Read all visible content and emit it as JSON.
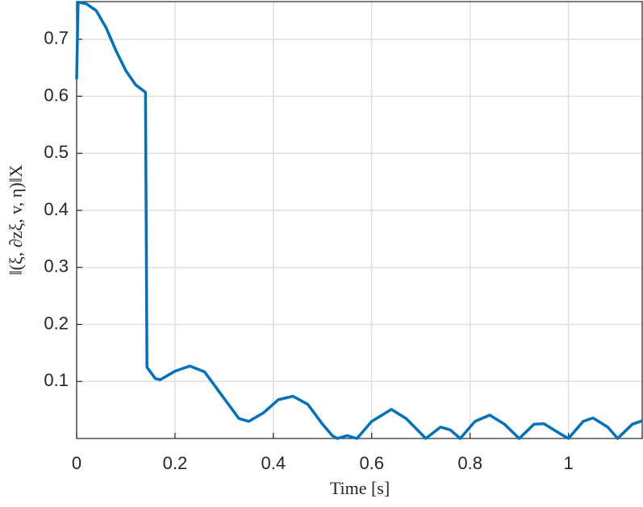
{
  "chart_data": {
    "type": "line",
    "xlabel": "Time [s]",
    "ylabel": "‖(ξ, ∂zξ, v, η)‖X",
    "x": [
      0,
      0.003,
      0.02,
      0.04,
      0.06,
      0.08,
      0.1,
      0.12,
      0.14,
      0.143,
      0.16,
      0.17,
      0.2,
      0.23,
      0.26,
      0.3,
      0.33,
      0.35,
      0.38,
      0.41,
      0.44,
      0.47,
      0.5,
      0.52,
      0.53,
      0.55,
      0.57,
      0.6,
      0.64,
      0.67,
      0.71,
      0.74,
      0.76,
      0.78,
      0.81,
      0.84,
      0.87,
      0.9,
      0.93,
      0.95,
      0.98,
      1.0,
      1.03,
      1.05,
      1.08,
      1.1,
      1.13,
      1.15
    ],
    "series": [
      {
        "color": "#0072bd",
        "values": [
          0.63,
          0.765,
          0.762,
          0.75,
          0.72,
          0.68,
          0.645,
          0.62,
          0.607,
          0.125,
          0.105,
          0.103,
          0.118,
          0.127,
          0.117,
          0.07,
          0.035,
          0.03,
          0.045,
          0.068,
          0.074,
          0.06,
          0.025,
          0.005,
          0.0,
          0.005,
          0.0,
          0.03,
          0.051,
          0.035,
          0.0,
          0.02,
          0.015,
          0.0,
          0.03,
          0.041,
          0.025,
          0.0,
          0.025,
          0.026,
          0.01,
          0.0,
          0.03,
          0.036,
          0.02,
          0.0,
          0.025,
          0.031
        ]
      }
    ],
    "xlim": [
      0,
      1.15
    ],
    "ylim": [
      0,
      0.766
    ],
    "xticks": [
      0,
      0.2,
      0.4,
      0.6,
      0.8,
      1
    ],
    "yticks": [
      0.1,
      0.2,
      0.3,
      0.4,
      0.5,
      0.6,
      0.7
    ],
    "grid": true
  }
}
